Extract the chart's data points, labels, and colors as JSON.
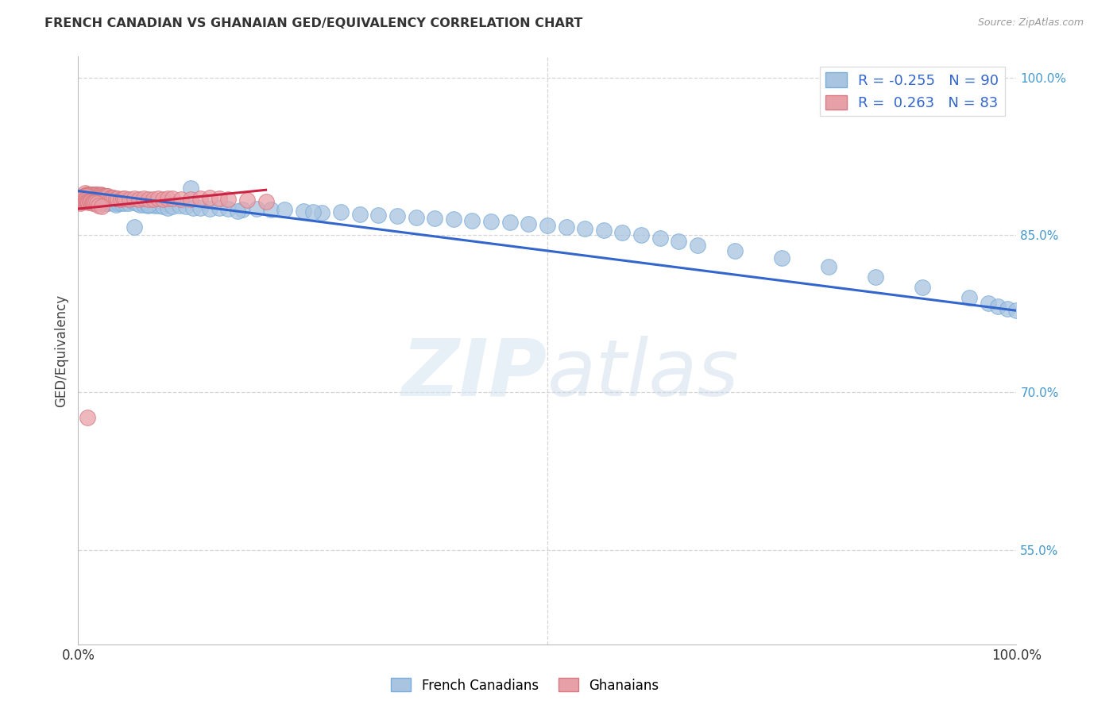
{
  "title": "FRENCH CANADIAN VS GHANAIAN GED/EQUIVALENCY CORRELATION CHART",
  "source": "Source: ZipAtlas.com",
  "ylabel": "GED/Equivalency",
  "watermark": "ZIPatlas",
  "legend_blue_r": "-0.255",
  "legend_blue_n": "90",
  "legend_pink_r": "0.263",
  "legend_pink_n": "83",
  "blue_color": "#a8c4e0",
  "pink_color": "#e8a0a8",
  "blue_line_color": "#3366cc",
  "pink_line_color": "#cc2244",
  "right_axis_color": "#4499cc",
  "blue_scatter_x": [
    0.003,
    0.005,
    0.006,
    0.007,
    0.008,
    0.009,
    0.01,
    0.011,
    0.012,
    0.013,
    0.014,
    0.015,
    0.016,
    0.017,
    0.018,
    0.019,
    0.02,
    0.022,
    0.024,
    0.026,
    0.028,
    0.03,
    0.032,
    0.034,
    0.036,
    0.038,
    0.04,
    0.043,
    0.046,
    0.05,
    0.054,
    0.058,
    0.062,
    0.066,
    0.07,
    0.074,
    0.078,
    0.082,
    0.086,
    0.09,
    0.095,
    0.1,
    0.108,
    0.115,
    0.122,
    0.13,
    0.14,
    0.15,
    0.16,
    0.175,
    0.19,
    0.205,
    0.22,
    0.24,
    0.26,
    0.28,
    0.3,
    0.32,
    0.34,
    0.36,
    0.38,
    0.4,
    0.42,
    0.44,
    0.46,
    0.48,
    0.5,
    0.52,
    0.54,
    0.56,
    0.58,
    0.6,
    0.62,
    0.64,
    0.66,
    0.7,
    0.75,
    0.8,
    0.85,
    0.9,
    0.95,
    0.97,
    0.98,
    0.99,
    1.0,
    0.06,
    0.075,
    0.12,
    0.17,
    0.25
  ],
  "blue_scatter_y": [
    0.885,
    0.883,
    0.885,
    0.886,
    0.884,
    0.885,
    0.883,
    0.884,
    0.882,
    0.883,
    0.882,
    0.883,
    0.882,
    0.881,
    0.882,
    0.88,
    0.882,
    0.881,
    0.88,
    0.881,
    0.88,
    0.88,
    0.88,
    0.882,
    0.881,
    0.88,
    0.879,
    0.88,
    0.88,
    0.88,
    0.88,
    0.882,
    0.88,
    0.879,
    0.879,
    0.878,
    0.879,
    0.878,
    0.878,
    0.877,
    0.876,
    0.877,
    0.878,
    0.877,
    0.876,
    0.876,
    0.875,
    0.876,
    0.875,
    0.874,
    0.875,
    0.874,
    0.874,
    0.873,
    0.871,
    0.872,
    0.87,
    0.869,
    0.868,
    0.867,
    0.866,
    0.865,
    0.864,
    0.863,
    0.862,
    0.861,
    0.859,
    0.858,
    0.856,
    0.855,
    0.852,
    0.85,
    0.847,
    0.844,
    0.84,
    0.835,
    0.828,
    0.82,
    0.81,
    0.8,
    0.79,
    0.785,
    0.782,
    0.78,
    0.778,
    0.858,
    0.879,
    0.895,
    0.873,
    0.872
  ],
  "pink_scatter_x": [
    0.002,
    0.003,
    0.004,
    0.005,
    0.006,
    0.007,
    0.008,
    0.009,
    0.01,
    0.011,
    0.012,
    0.013,
    0.014,
    0.015,
    0.016,
    0.017,
    0.018,
    0.019,
    0.02,
    0.021,
    0.022,
    0.023,
    0.024,
    0.025,
    0.026,
    0.027,
    0.028,
    0.029,
    0.03,
    0.032,
    0.034,
    0.036,
    0.038,
    0.04,
    0.042,
    0.045,
    0.048,
    0.05,
    0.055,
    0.06,
    0.065,
    0.07,
    0.075,
    0.08,
    0.085,
    0.09,
    0.095,
    0.1,
    0.11,
    0.12,
    0.13,
    0.14,
    0.15,
    0.16,
    0.18,
    0.2,
    0.003,
    0.004,
    0.005,
    0.006,
    0.007,
    0.008,
    0.009,
    0.002,
    0.003,
    0.004,
    0.005,
    0.006,
    0.007,
    0.008,
    0.009,
    0.01,
    0.011,
    0.012,
    0.013,
    0.015,
    0.016,
    0.017,
    0.018,
    0.02,
    0.022,
    0.025,
    0.01
  ],
  "pink_scatter_y": [
    0.88,
    0.882,
    0.884,
    0.886,
    0.888,
    0.89,
    0.888,
    0.888,
    0.889,
    0.889,
    0.889,
    0.889,
    0.888,
    0.889,
    0.889,
    0.888,
    0.889,
    0.889,
    0.889,
    0.888,
    0.888,
    0.888,
    0.889,
    0.888,
    0.888,
    0.887,
    0.887,
    0.887,
    0.887,
    0.887,
    0.886,
    0.886,
    0.886,
    0.885,
    0.885,
    0.884,
    0.885,
    0.885,
    0.884,
    0.885,
    0.884,
    0.885,
    0.884,
    0.884,
    0.885,
    0.884,
    0.885,
    0.885,
    0.884,
    0.884,
    0.885,
    0.886,
    0.885,
    0.884,
    0.883,
    0.882,
    0.884,
    0.885,
    0.886,
    0.887,
    0.887,
    0.886,
    0.887,
    0.884,
    0.883,
    0.884,
    0.885,
    0.883,
    0.882,
    0.883,
    0.882,
    0.882,
    0.881,
    0.882,
    0.882,
    0.881,
    0.88,
    0.881,
    0.881,
    0.88,
    0.878,
    0.877,
    0.676
  ],
  "xlim": [
    0.0,
    1.0
  ],
  "ylim": [
    0.46,
    1.02
  ],
  "yticks": [
    0.55,
    0.7,
    0.85,
    1.0
  ],
  "ytick_labels": [
    "55.0%",
    "70.0%",
    "85.0%",
    "100.0%"
  ],
  "grid_color": "#cccccc",
  "background_color": "#ffffff"
}
